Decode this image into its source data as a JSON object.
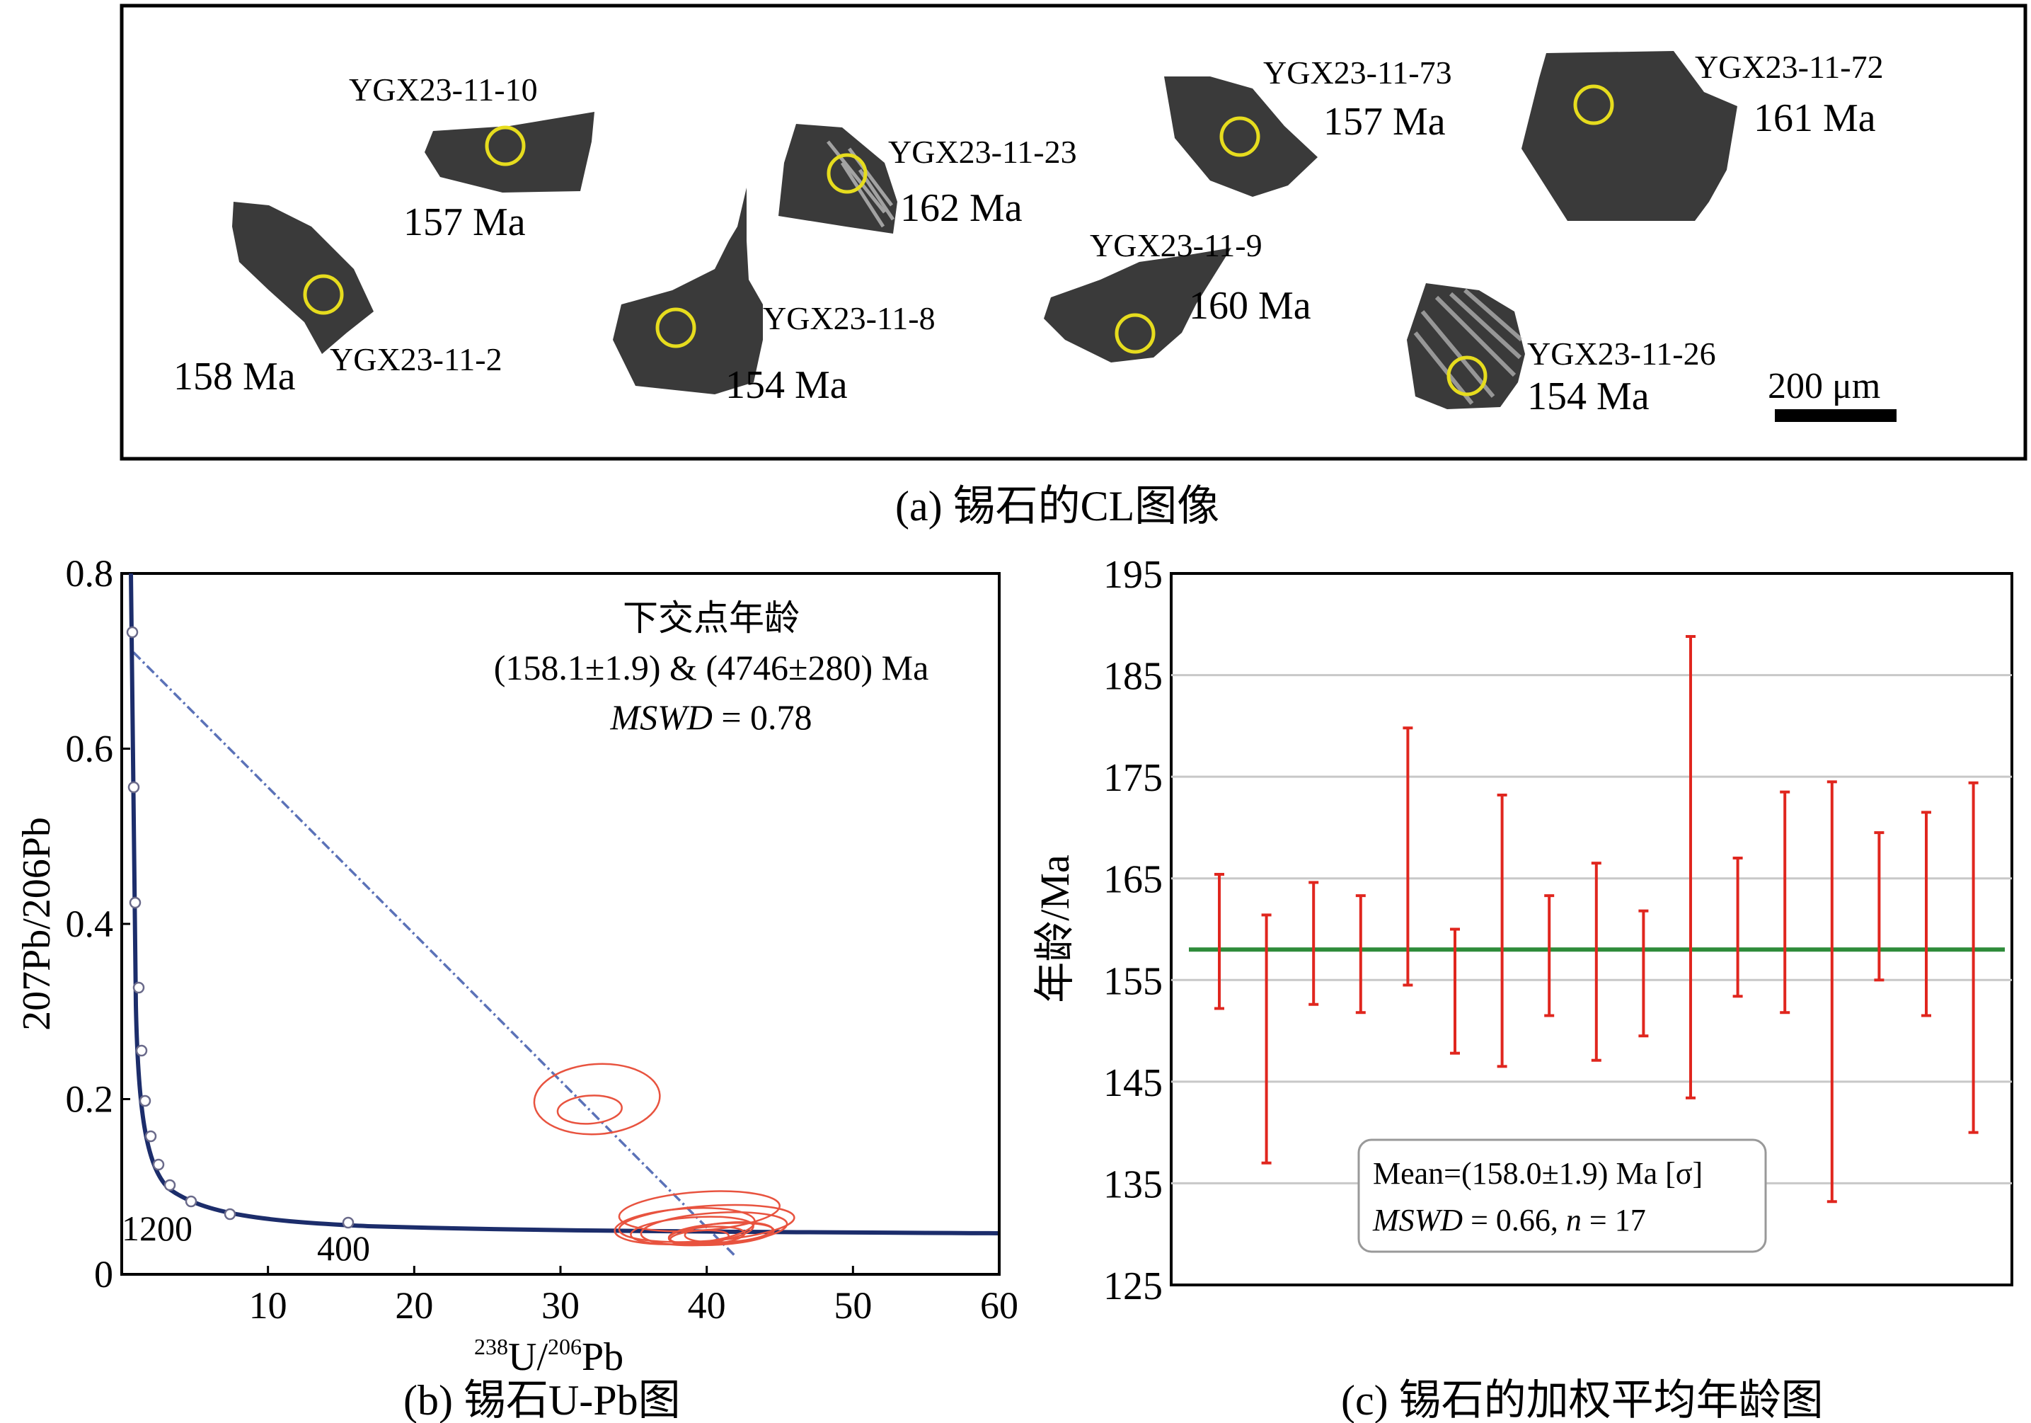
{
  "panel_a": {
    "caption": "(a) 锡石的CL图像",
    "scale_bar": "200 μm",
    "grains": [
      {
        "id": "YGX23-11-10",
        "age": "157 Ma"
      },
      {
        "id": "YGX23-11-2",
        "age": "158 Ma"
      },
      {
        "id": "YGX23-11-23",
        "age": "162 Ma"
      },
      {
        "id": "YGX23-11-8",
        "age": "154 Ma"
      },
      {
        "id": "YGX23-11-73",
        "age": "157 Ma"
      },
      {
        "id": "YGX23-11-9",
        "age": "160 Ma"
      },
      {
        "id": "YGX23-11-72",
        "age": "161 Ma"
      },
      {
        "id": "YGX23-11-26",
        "age": "154 Ma"
      }
    ]
  },
  "panel_b": {
    "caption": "(b) 锡石U-Pb图",
    "annotation_title": "下交点年龄",
    "annotation_ages": "(158.1±1.9) & (4746±280) Ma",
    "annotation_mswd_label": "MSWD",
    "annotation_mswd_value": " = 0.78",
    "xlabel_sup": "238",
    "xlabel_main": "U/",
    "xlabel_sup2": "206",
    "xlabel_tail": "Pb",
    "ylabel": "207Pb/206Pb",
    "curve_labels": [
      "1200",
      "400"
    ]
  },
  "panel_c": {
    "caption": "(c) 锡石的加权平均年龄图",
    "ylabel": "年龄/Ma",
    "legend_line1": "Mean=(158.0±1.9) Ma [σ]",
    "legend_line2_label": "MSWD",
    "legend_line2_value": " = 0.66, ",
    "legend_n_label": "n",
    "legend_n_value": " = 17"
  },
  "chart_data": [
    {
      "type": "scatter",
      "subtype": "tera-wasserburg-concordia",
      "xlim": [
        0,
        60
      ],
      "ylim": [
        0,
        0.8
      ],
      "xticks": [
        10,
        20,
        30,
        40,
        50,
        60
      ],
      "yticks": [
        0,
        0.2,
        0.4,
        0.6,
        0.8
      ],
      "ytick_labels": [
        "0",
        "0.2",
        "0.4",
        "0.6",
        "0.8"
      ],
      "discordia_line": {
        "x": [
          0.8,
          42
        ],
        "y": [
          0.71,
          0.02
        ]
      },
      "ellipses": [
        {
          "cx": 32.5,
          "cy": 0.2,
          "rx": 4.3,
          "ry": 0.04
        },
        {
          "cx": 32.0,
          "cy": 0.188,
          "rx": 2.2,
          "ry": 0.016
        },
        {
          "cx": 39.5,
          "cy": 0.072,
          "rx": 5.5,
          "ry": 0.022
        },
        {
          "cx": 40.0,
          "cy": 0.058,
          "rx": 6.0,
          "ry": 0.02
        },
        {
          "cx": 40.5,
          "cy": 0.052,
          "rx": 5.0,
          "ry": 0.018
        },
        {
          "cx": 39.0,
          "cy": 0.05,
          "rx": 4.2,
          "ry": 0.015
        },
        {
          "cx": 41.0,
          "cy": 0.046,
          "rx": 3.6,
          "ry": 0.012
        },
        {
          "cx": 40.0,
          "cy": 0.044,
          "rx": 2.6,
          "ry": 0.01
        },
        {
          "cx": 41.5,
          "cy": 0.048,
          "rx": 3.0,
          "ry": 0.011
        },
        {
          "cx": 39.5,
          "cy": 0.042,
          "rx": 2.0,
          "ry": 0.008
        },
        {
          "cx": 38.5,
          "cy": 0.055,
          "rx": 4.8,
          "ry": 0.02
        }
      ]
    },
    {
      "type": "scatter",
      "subtype": "weighted-mean-error-bars",
      "ylim": [
        125,
        195
      ],
      "yticks": [
        125,
        135,
        145,
        155,
        165,
        175,
        185,
        195
      ],
      "mean": 158.0,
      "bars": [
        {
          "low": 152.2,
          "high": 165.4
        },
        {
          "low": 137.0,
          "high": 161.4
        },
        {
          "low": 152.6,
          "high": 164.6
        },
        {
          "low": 151.8,
          "high": 163.3
        },
        {
          "low": 154.5,
          "high": 179.8
        },
        {
          "low": 147.8,
          "high": 160.0
        },
        {
          "low": 146.5,
          "high": 173.2
        },
        {
          "low": 151.5,
          "high": 163.3
        },
        {
          "low": 147.1,
          "high": 166.5
        },
        {
          "low": 149.5,
          "high": 161.8
        },
        {
          "low": 143.4,
          "high": 188.8
        },
        {
          "low": 153.4,
          "high": 167.0
        },
        {
          "low": 151.8,
          "high": 173.5
        },
        {
          "low": 133.2,
          "high": 174.5
        },
        {
          "low": 155.0,
          "high": 169.5
        },
        {
          "low": 151.5,
          "high": 171.5
        },
        {
          "low": 140.0,
          "high": 174.4
        }
      ]
    }
  ]
}
